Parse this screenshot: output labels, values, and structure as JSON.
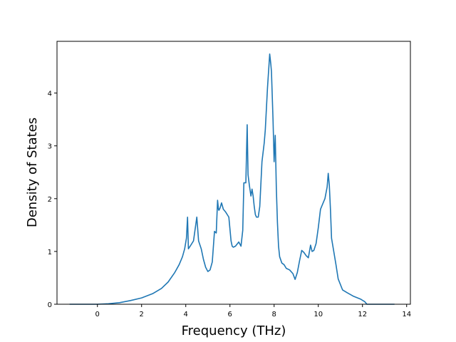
{
  "chart_data": {
    "type": "line",
    "title": "",
    "xlabel": "Frequency (THz)",
    "ylabel": "Density of States",
    "xlim": [
      -1.83,
      14.17
    ],
    "ylim": [
      0,
      4.98
    ],
    "xticks": [
      0,
      2,
      4,
      6,
      8,
      10,
      12,
      14
    ],
    "yticks": [
      0,
      1,
      2,
      3,
      4
    ],
    "grid": false,
    "color": "#1f77b4",
    "series": [
      {
        "x": [
          -1.26,
          -1.0,
          -0.5,
          0.0,
          0.5,
          1.0,
          1.5,
          2.0,
          2.5,
          2.9,
          3.2,
          3.5,
          3.7,
          3.85,
          3.95,
          4.03,
          4.08,
          4.12,
          4.2,
          4.35,
          4.45,
          4.5,
          4.58,
          4.7,
          4.8,
          4.9,
          5.0,
          5.1,
          5.2,
          5.3,
          5.38,
          5.44,
          5.48,
          5.5,
          5.55,
          5.62,
          5.7,
          5.8,
          5.95,
          6.05,
          6.1,
          6.15,
          6.25,
          6.4,
          6.5,
          6.58,
          6.63,
          6.72,
          6.78,
          6.82,
          6.88,
          6.95,
          7.0,
          7.05,
          7.1,
          7.15,
          7.2,
          7.28,
          7.35,
          7.45,
          7.55,
          7.6,
          7.7,
          7.8,
          7.85,
          7.88,
          7.95,
          8.0,
          8.05,
          8.1,
          8.15,
          8.2,
          8.25,
          8.35,
          8.45,
          8.55,
          8.7,
          8.85,
          8.95,
          9.05,
          9.15,
          9.25,
          9.35,
          9.45,
          9.55,
          9.65,
          9.72,
          9.8,
          9.9,
          10.0,
          10.1,
          10.2,
          10.3,
          10.4,
          10.45,
          10.5,
          10.55,
          10.6,
          10.7,
          10.8,
          10.9,
          11.1,
          11.3,
          11.6,
          11.9,
          12.1,
          12.2,
          12.4,
          12.8,
          13.0,
          13.45
        ],
        "y": [
          0.0,
          0.0,
          0.0,
          0.0,
          0.01,
          0.03,
          0.07,
          0.12,
          0.2,
          0.3,
          0.42,
          0.6,
          0.75,
          0.9,
          1.05,
          1.25,
          1.65,
          1.05,
          1.1,
          1.2,
          1.5,
          1.65,
          1.2,
          1.05,
          0.85,
          0.7,
          0.62,
          0.65,
          0.8,
          1.38,
          1.35,
          1.97,
          1.8,
          1.78,
          1.82,
          1.92,
          1.8,
          1.75,
          1.65,
          1.2,
          1.1,
          1.08,
          1.1,
          1.18,
          1.1,
          1.4,
          2.3,
          2.3,
          3.4,
          2.45,
          2.25,
          2.05,
          2.18,
          2.05,
          1.85,
          1.7,
          1.65,
          1.65,
          1.85,
          2.7,
          3.05,
          3.3,
          4.1,
          4.74,
          4.55,
          4.4,
          3.5,
          2.7,
          3.2,
          2.2,
          1.55,
          1.1,
          0.9,
          0.78,
          0.75,
          0.68,
          0.65,
          0.58,
          0.47,
          0.6,
          0.82,
          1.02,
          0.98,
          0.92,
          0.88,
          1.12,
          1.0,
          1.02,
          1.15,
          1.45,
          1.8,
          1.9,
          2.0,
          2.22,
          2.48,
          2.25,
          1.8,
          1.25,
          1.0,
          0.75,
          0.48,
          0.27,
          0.22,
          0.15,
          0.1,
          0.05,
          0.0,
          0.0,
          0.0,
          0.0,
          0.0
        ]
      }
    ]
  }
}
